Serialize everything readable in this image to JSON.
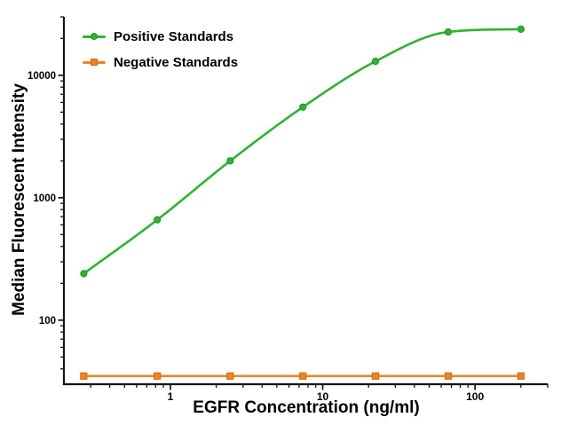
{
  "chart_data": {
    "type": "line",
    "title": "",
    "xlabel": "EGFR Concentration (ng/ml)",
    "ylabel": "Median Fluorescent Intensity",
    "x_scale": "log",
    "y_scale": "log",
    "xlim": [
      0.2,
      300
    ],
    "ylim": [
      30,
      30000
    ],
    "x_major_ticks": [
      1,
      10,
      100
    ],
    "y_major_ticks": [
      100,
      1000,
      10000
    ],
    "grid": false,
    "legend_position": "top-left-inside",
    "x": [
      0.27,
      0.82,
      2.47,
      7.41,
      22.2,
      66.7,
      200
    ],
    "series": [
      {
        "name": "Positive Standards",
        "marker": "circle",
        "smooth": true,
        "color": "#2db52d",
        "edge_color": "#1e9420",
        "values": [
          240,
          660,
          2000,
          5500,
          13000,
          22600,
          23800
        ]
      },
      {
        "name": "Negative Standards",
        "marker": "square",
        "smooth": false,
        "color": "#f5821f",
        "edge_color": "#c96a10",
        "values": [
          35,
          35,
          35,
          35,
          35,
          35,
          35
        ]
      }
    ]
  },
  "colors": {
    "axis": "#141414",
    "tick_text": "#000000",
    "background": "#ffffff"
  }
}
